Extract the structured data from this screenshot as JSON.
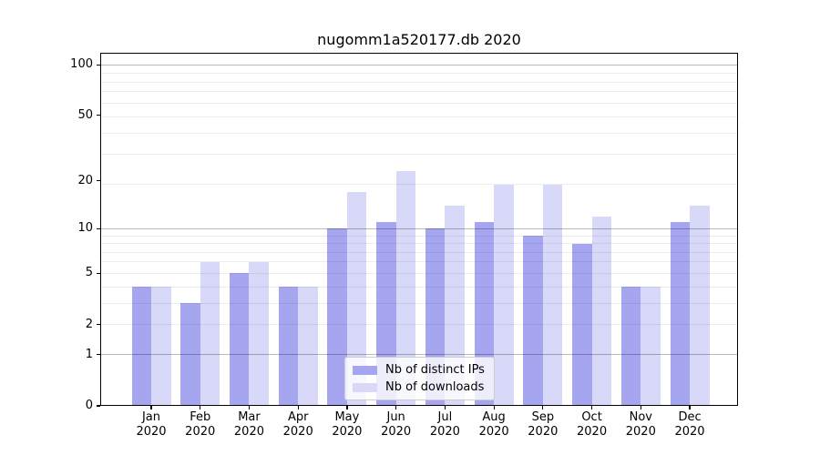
{
  "title": "nugomm1a520177.db 2020",
  "chart_data": {
    "type": "bar",
    "title": "nugomm1a520177.db 2020",
    "xlabel": "",
    "ylabel": "",
    "categories": [
      "Jan",
      "Feb",
      "Mar",
      "Apr",
      "May",
      "Jun",
      "Jul",
      "Aug",
      "Sep",
      "Oct",
      "Nov",
      "Dec"
    ],
    "category_year": "2020",
    "series": [
      {
        "name": "Nb of distinct IPs",
        "color": "#a5a5f0",
        "values": [
          4,
          3,
          5,
          4,
          10,
          11,
          10,
          11,
          9,
          8,
          4,
          11
        ]
      },
      {
        "name": "Nb of downloads",
        "color": "#d8d8f8",
        "values": [
          4,
          6,
          6,
          4,
          17,
          23,
          14,
          19,
          19,
          12,
          4,
          14
        ]
      }
    ],
    "yscale": "log1p",
    "ylim": [
      0,
      118
    ],
    "yticks": [
      0,
      1,
      2,
      5,
      10,
      20,
      50,
      100
    ],
    "major_gridline_values": [
      1,
      10,
      100
    ],
    "minor_gridline_values": [
      2,
      3,
      4,
      5,
      6,
      7,
      8,
      9,
      19,
      29,
      39,
      49,
      59,
      69,
      79,
      89
    ],
    "grid": true,
    "legend_position": "lower center"
  }
}
